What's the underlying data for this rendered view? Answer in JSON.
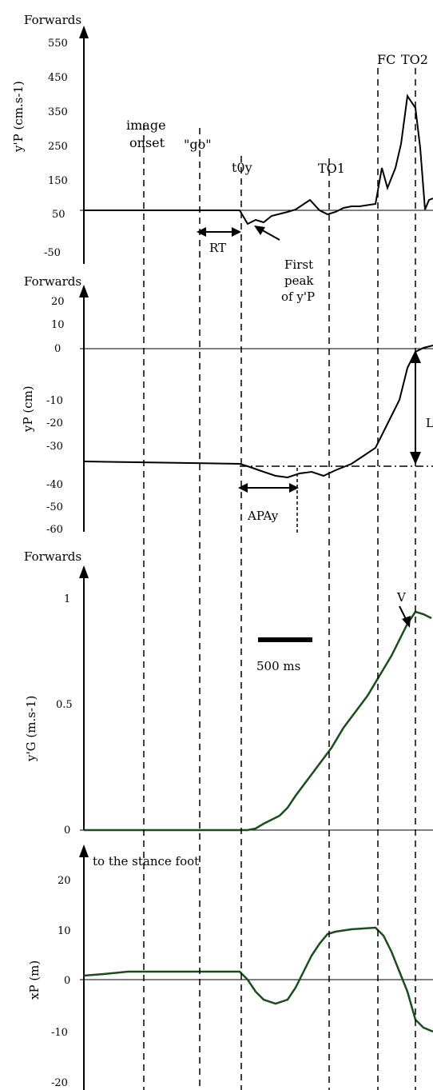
{
  "chart_data": [
    {
      "type": "line",
      "ylabel": "y'P (cm.s-1)",
      "direction_label": "Forwards",
      "yticks": [
        -50,
        50,
        150,
        250,
        350,
        450,
        550
      ],
      "ylim": [
        -50,
        550
      ],
      "series": [
        {
          "color": "#000000",
          "x": [
            0,
            0.5,
            0.8,
            1.0,
            1.1,
            1.14,
            1.2,
            1.26,
            1.34,
            1.4,
            1.45,
            1.5,
            1.54,
            1.6,
            1.66,
            1.7,
            1.74,
            1.8,
            1.9,
            2.0,
            2.06,
            2.1,
            2.14,
            2.2,
            2.24,
            2.3,
            2.35,
            2.4,
            2.43,
            2.47,
            2.5,
            2.55,
            2.6,
            2.65,
            2.7,
            2.74
          ],
          "y": [
            0,
            0,
            0,
            0,
            0,
            -20,
            -10,
            -20,
            0,
            20,
            50,
            0,
            -10,
            20,
            30,
            40,
            40,
            40,
            60,
            170,
            120,
            150,
            200,
            250,
            300,
            340,
            350,
            200,
            50,
            20,
            20,
            30,
            30,
            40,
            40,
            40
          ]
        }
      ],
      "annotations": [
        {
          "text": "RT"
        },
        {
          "text": "First"
        },
        {
          "text": "peak"
        },
        {
          "text": "of y'P"
        }
      ]
    },
    {
      "type": "line",
      "ylabel": "yP (cm)",
      "direction_label": "Forwards",
      "yticks": [
        -60,
        -50,
        -40,
        -30,
        -20,
        -10,
        0,
        10,
        20
      ],
      "ylim": [
        -60,
        25
      ],
      "series": [
        {
          "color": "#000000",
          "x": [
            0,
            0.5,
            1.0,
            1.14,
            1.2,
            1.3,
            1.36,
            1.4,
            1.45,
            1.5,
            1.56,
            1.7,
            1.8,
            1.9,
            2.0,
            2.06,
            2.1,
            2.2,
            2.26,
            2.3,
            2.36,
            2.4,
            2.44,
            2.5,
            2.55,
            2.6,
            2.65,
            2.7,
            2.74
          ],
          "y": [
            -43,
            -44,
            -45,
            -47,
            -48,
            -50,
            -50,
            -48,
            -47,
            -47,
            -46,
            -44,
            -40,
            -38,
            -36,
            -34,
            -32,
            -26,
            -20,
            -14,
            -6,
            2,
            7,
            8,
            9,
            9,
            10,
            10,
            10
          ]
        }
      ],
      "annotations": [
        {
          "text": "APAy"
        },
        {
          "text": "L"
        }
      ]
    },
    {
      "type": "line",
      "ylabel": "y'G (m.s-1)",
      "direction_label": "Forwards",
      "yticks": [
        0,
        0.5,
        1
      ],
      "ylim": [
        0,
        1.1
      ],
      "series": [
        {
          "color": "#1a4d1a",
          "x": [
            0,
            0.5,
            0.9,
            1.0,
            1.14,
            1.2,
            1.3,
            1.4,
            1.5,
            1.6,
            1.7,
            1.8,
            1.9,
            2.0,
            2.1,
            2.2,
            2.3,
            2.4,
            2.5,
            2.54,
            2.58,
            2.6,
            2.7,
            2.74
          ],
          "y": [
            0,
            0,
            0,
            0,
            0.01,
            0.02,
            0.05,
            0.15,
            0.25,
            0.36,
            0.45,
            0.55,
            0.63,
            0.72,
            0.78,
            0.85,
            0.88,
            0.88,
            0.87,
            0.86,
            0.86,
            0.85,
            0.84,
            0.83
          ]
        }
      ],
      "annotations": [
        {
          "text": "V"
        },
        {
          "text": "500 ms"
        }
      ]
    },
    {
      "type": "line",
      "ylabel": "xP (m)",
      "direction_label": "to the stance foot",
      "yticks": [
        -20,
        -10,
        0,
        10,
        20
      ],
      "ylim": [
        -20,
        25
      ],
      "series": [
        {
          "color": "#1a4d1a",
          "x": [
            0,
            0.2,
            0.5,
            0.8,
            1.0,
            1.14,
            1.2,
            1.3,
            1.4,
            1.5,
            1.56,
            1.6,
            1.7,
            1.8,
            1.9,
            2.0,
            2.06,
            2.1,
            2.2,
            2.3,
            2.4,
            2.5,
            2.6,
            2.7,
            2.74
          ],
          "y": [
            1,
            1,
            1,
            1,
            1,
            0,
            -3,
            -4,
            -3,
            0,
            3,
            7,
            10,
            11,
            11,
            12,
            12,
            11,
            8,
            3,
            -5,
            -9,
            -10,
            -10,
            -10
          ]
        }
      ],
      "annotations": []
    }
  ],
  "events": [
    {
      "label": "image",
      "label2": "onset",
      "x": 0.3
    },
    {
      "label": "\"go\"",
      "label2": "",
      "x": 0.75
    },
    {
      "label": "t0y",
      "label2": "",
      "x": 1.14
    },
    {
      "label": "TO1",
      "label2": "",
      "x": 2.0
    },
    {
      "label": "FC",
      "label2": "",
      "x": 2.44
    },
    {
      "label": "TO2",
      "label2": "",
      "x": 2.56
    }
  ]
}
